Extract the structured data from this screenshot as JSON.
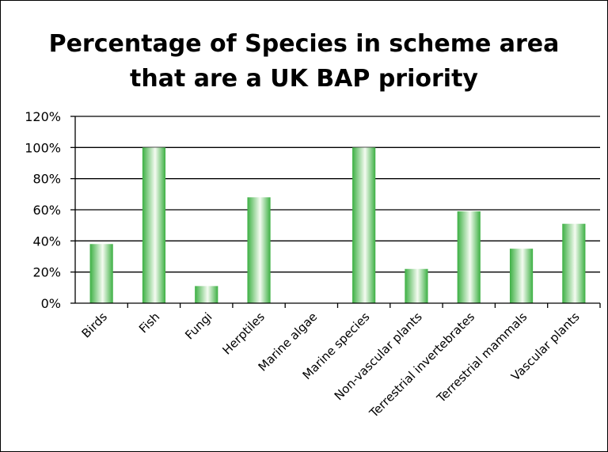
{
  "chart_data": {
    "type": "bar",
    "title_lines": [
      "Percentage of Species in scheme area",
      "that are a UK BAP priority"
    ],
    "categories": [
      "Birds",
      "Fish",
      "Fungi",
      "Herptiles",
      "Marine algae",
      "Marine species",
      "Non-vascular plants",
      "Terrestrial invertebrates",
      "Terrestrial mammals",
      "Vascular plants"
    ],
    "values": [
      38,
      100,
      11,
      68,
      0,
      100,
      22,
      59,
      35,
      51
    ],
    "y_ticks": [
      "0%",
      "20%",
      "40%",
      "60%",
      "80%",
      "100%",
      "120%"
    ],
    "ylim": [
      0,
      120
    ],
    "ytick_step": 20,
    "grid": true,
    "legend": "none",
    "colors": {
      "bar_dark": "#3cb043",
      "bar_light": "#f4fbf1",
      "grid": "#000000"
    }
  }
}
